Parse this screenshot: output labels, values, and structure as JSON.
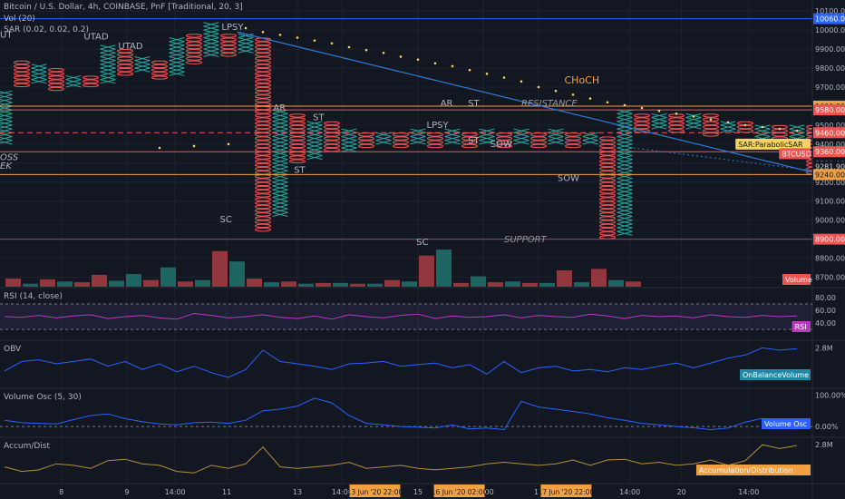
{
  "header": {
    "title": "Bitcoin / U.S. Dollar, 4h, COINBASE, PnF [Traditional, 20, 3]",
    "volume": "Vol (20)",
    "sar": "SAR (0.02, 0.02, 0.2)"
  },
  "chart_data": {
    "type": "point-and-figure",
    "price_axis": {
      "min": 8650,
      "max": 10120,
      "ticks": [
        8700,
        8800,
        8900,
        9000,
        9100,
        9200,
        9300,
        9400,
        9500,
        9600,
        9700,
        9800,
        9900,
        10000,
        10100
      ]
    },
    "columns": [
      {
        "t": "X",
        "lo": 9400,
        "hi": 9680
      },
      {
        "t": "O",
        "lo": 9700,
        "hi": 9840
      },
      {
        "t": "X",
        "lo": 9720,
        "hi": 9820
      },
      {
        "t": "O",
        "lo": 9680,
        "hi": 9800
      },
      {
        "t": "X",
        "lo": 9700,
        "hi": 9760
      },
      {
        "t": "O",
        "lo": 9700,
        "hi": 9760
      },
      {
        "t": "X",
        "lo": 9720,
        "hi": 9920
      },
      {
        "t": "O",
        "lo": 9760,
        "hi": 9900
      },
      {
        "t": "X",
        "lo": 9780,
        "hi": 9860
      },
      {
        "t": "O",
        "lo": 9740,
        "hi": 9840
      },
      {
        "t": "X",
        "lo": 9760,
        "hi": 9960
      },
      {
        "t": "O",
        "lo": 9820,
        "hi": 9980
      },
      {
        "t": "X",
        "lo": 9860,
        "hi": 10040
      },
      {
        "t": "O",
        "lo": 9860,
        "hi": 9980
      },
      {
        "t": "X",
        "lo": 9880,
        "hi": 9980
      },
      {
        "t": "O",
        "lo": 8940,
        "hi": 9960
      },
      {
        "t": "X",
        "lo": 9020,
        "hi": 9580
      },
      {
        "t": "O",
        "lo": 9300,
        "hi": 9560
      },
      {
        "t": "X",
        "lo": 9320,
        "hi": 9520
      },
      {
        "t": "O",
        "lo": 9360,
        "hi": 9520
      },
      {
        "t": "X",
        "lo": 9360,
        "hi": 9480
      },
      {
        "t": "O",
        "lo": 9380,
        "hi": 9460
      },
      {
        "t": "X",
        "lo": 9400,
        "hi": 9460
      },
      {
        "t": "O",
        "lo": 9380,
        "hi": 9460
      },
      {
        "t": "X",
        "lo": 9400,
        "hi": 9480
      },
      {
        "t": "O",
        "lo": 9380,
        "hi": 9460
      },
      {
        "t": "X",
        "lo": 9400,
        "hi": 9480
      },
      {
        "t": "O",
        "lo": 9380,
        "hi": 9460
      },
      {
        "t": "X",
        "lo": 9400,
        "hi": 9480
      },
      {
        "t": "O",
        "lo": 9380,
        "hi": 9460
      },
      {
        "t": "X",
        "lo": 9400,
        "hi": 9480
      },
      {
        "t": "O",
        "lo": 9380,
        "hi": 9460
      },
      {
        "t": "X",
        "lo": 9400,
        "hi": 9480
      },
      {
        "t": "O",
        "lo": 9380,
        "hi": 9460
      },
      {
        "t": "X",
        "lo": 9400,
        "hi": 9460
      },
      {
        "t": "O",
        "lo": 8900,
        "hi": 9440
      },
      {
        "t": "X",
        "lo": 8920,
        "hi": 9580
      },
      {
        "t": "O",
        "lo": 9460,
        "hi": 9560
      },
      {
        "t": "X",
        "lo": 9480,
        "hi": 9560
      },
      {
        "t": "O",
        "lo": 9460,
        "hi": 9560
      },
      {
        "t": "X",
        "lo": 9480,
        "hi": 9560
      },
      {
        "t": "O",
        "lo": 9440,
        "hi": 9560
      },
      {
        "t": "X",
        "lo": 9460,
        "hi": 9520
      },
      {
        "t": "O",
        "lo": 9460,
        "hi": 9520
      },
      {
        "t": "X",
        "lo": 9420,
        "hi": 9500
      },
      {
        "t": "O",
        "lo": 9420,
        "hi": 9500
      },
      {
        "t": "X",
        "lo": 9420,
        "hi": 9500
      },
      {
        "t": "O",
        "lo": 9240,
        "hi": 9500
      },
      {
        "t": "X",
        "lo": 9260,
        "hi": 9460
      },
      {
        "t": "O",
        "lo": 9240,
        "hi": 9440
      },
      {
        "t": "X",
        "lo": 9240,
        "hi": 9440
      },
      {
        "t": "O",
        "lo": 9340,
        "hi": 9400
      }
    ],
    "sar": [
      {
        "c": 9,
        "v": 9380
      },
      {
        "c": 11,
        "v": 9390
      },
      {
        "c": 13,
        "v": 9400
      },
      {
        "c": 14,
        "v": 10010
      },
      {
        "c": 15,
        "v": 9990
      },
      {
        "c": 16,
        "v": 9975
      },
      {
        "c": 17,
        "v": 9960
      },
      {
        "c": 18,
        "v": 9945
      },
      {
        "c": 19,
        "v": 9930
      },
      {
        "c": 20,
        "v": 9910
      },
      {
        "c": 21,
        "v": 9895
      },
      {
        "c": 22,
        "v": 9880
      },
      {
        "c": 23,
        "v": 9860
      },
      {
        "c": 24,
        "v": 9845
      },
      {
        "c": 25,
        "v": 9825
      },
      {
        "c": 26,
        "v": 9810
      },
      {
        "c": 27,
        "v": 9790
      },
      {
        "c": 28,
        "v": 9770
      },
      {
        "c": 29,
        "v": 9750
      },
      {
        "c": 30,
        "v": 9730
      },
      {
        "c": 31,
        "v": 9700
      },
      {
        "c": 32,
        "v": 9680
      },
      {
        "c": 33,
        "v": 9660
      },
      {
        "c": 34,
        "v": 9640
      },
      {
        "c": 35,
        "v": 9620
      },
      {
        "c": 36,
        "v": 9605
      },
      {
        "c": 37,
        "v": 9590
      },
      {
        "c": 38,
        "v": 9575
      },
      {
        "c": 39,
        "v": 9560
      },
      {
        "c": 40,
        "v": 9545
      },
      {
        "c": 41,
        "v": 9530
      },
      {
        "c": 42,
        "v": 9515
      },
      {
        "c": 43,
        "v": 9500
      },
      {
        "c": 44,
        "v": 9490
      },
      {
        "c": 45,
        "v": 9480
      },
      {
        "c": 46,
        "v": 9470
      },
      {
        "c": 47,
        "v": 9465
      }
    ],
    "volume": [
      {
        "c": 0,
        "v": 11,
        "d": "dn"
      },
      {
        "c": 1,
        "v": 4,
        "d": "up"
      },
      {
        "c": 2,
        "v": 10,
        "d": "dn"
      },
      {
        "c": 3,
        "v": 7,
        "d": "up"
      },
      {
        "c": 4,
        "v": 6,
        "d": "dn"
      },
      {
        "c": 5,
        "v": 16,
        "d": "dn"
      },
      {
        "c": 6,
        "v": 8,
        "d": "up"
      },
      {
        "c": 7,
        "v": 17,
        "d": "up"
      },
      {
        "c": 8,
        "v": 9,
        "d": "dn"
      },
      {
        "c": 9,
        "v": 26,
        "d": "up"
      },
      {
        "c": 10,
        "v": 7,
        "d": "dn"
      },
      {
        "c": 11,
        "v": 9,
        "d": "up"
      },
      {
        "c": 12,
        "v": 48,
        "d": "dn"
      },
      {
        "c": 13,
        "v": 34,
        "d": "up"
      },
      {
        "c": 14,
        "v": 11,
        "d": "dn"
      },
      {
        "c": 15,
        "v": 6,
        "d": "up"
      },
      {
        "c": 16,
        "v": 7,
        "d": "dn"
      },
      {
        "c": 17,
        "v": 4,
        "d": "up"
      },
      {
        "c": 18,
        "v": 5,
        "d": "dn"
      },
      {
        "c": 19,
        "v": 5,
        "d": "up"
      },
      {
        "c": 20,
        "v": 4,
        "d": "dn"
      },
      {
        "c": 21,
        "v": 4,
        "d": "up"
      },
      {
        "c": 22,
        "v": 9,
        "d": "dn"
      },
      {
        "c": 23,
        "v": 7,
        "d": "up"
      },
      {
        "c": 24,
        "v": 42,
        "d": "dn"
      },
      {
        "c": 25,
        "v": 50,
        "d": "up"
      },
      {
        "c": 26,
        "v": 5,
        "d": "dn"
      },
      {
        "c": 27,
        "v": 14,
        "d": "up"
      },
      {
        "c": 28,
        "v": 6,
        "d": "dn"
      },
      {
        "c": 29,
        "v": 7,
        "d": "up"
      },
      {
        "c": 30,
        "v": 5,
        "d": "dn"
      },
      {
        "c": 31,
        "v": 5,
        "d": "up"
      },
      {
        "c": 32,
        "v": 22,
        "d": "dn"
      },
      {
        "c": 33,
        "v": 6,
        "d": "up"
      },
      {
        "c": 34,
        "v": 24,
        "d": "dn"
      },
      {
        "c": 35,
        "v": 9,
        "d": "up"
      },
      {
        "c": 36,
        "v": 7,
        "d": "dn"
      }
    ],
    "levels": [
      {
        "v": 10060,
        "color": "#2962ff",
        "w": 1,
        "dash": false
      },
      {
        "v": 9600,
        "color": "#f0a040",
        "w": 1,
        "dash": false
      },
      {
        "v": 9580,
        "color": "#ef5350",
        "w": 1,
        "dash": false
      },
      {
        "v": 9460,
        "color": "#ef5350",
        "w": 1,
        "dash": true
      },
      {
        "v": 9360,
        "color": "#ef5350",
        "w": 1,
        "dash": false
      },
      {
        "v": 9240,
        "color": "#f0a040",
        "w": 1,
        "dash": false
      },
      {
        "v": 8900,
        "color": "#e91e63",
        "w": 1,
        "dash": false
      }
    ],
    "price_labels": [
      {
        "v": 10060,
        "text": "10060.00",
        "bg": "#2962ff",
        "fg": "#ffffff"
      },
      {
        "v": 9600,
        "text": "9600.00",
        "bg": "#f0a040",
        "fg": "#131722"
      },
      {
        "v": 9580,
        "text": "9580.00",
        "bg": "#ef5350",
        "fg": "#ffffff"
      },
      {
        "v": 9460,
        "text": "9460.00",
        "bg": "#ef5350",
        "fg": "#ffffff"
      },
      {
        "v": 9360,
        "text": "9360.00",
        "bg": "#ef5350",
        "fg": "#ffffff"
      },
      {
        "v": 9282,
        "text": "9281.90",
        "bg": "#131722",
        "fg": "#d1d4dc"
      },
      {
        "v": 9240,
        "text": "9240.00",
        "bg": "#f0a040",
        "fg": "#131722"
      },
      {
        "v": 8900,
        "text": "8900.00",
        "bg": "#ef5350",
        "fg": "#ffffff"
      }
    ],
    "legend_tags": [
      {
        "v": 9400,
        "text": "SAR:ParabolicSAR",
        "bg": "#f4d35e",
        "fg": "#131722"
      },
      {
        "v": 9350,
        "text": "BTCUSD",
        "bg": "#ef5350",
        "fg": "#ffffff"
      }
    ],
    "volume_tag": "Volume",
    "annotations": [
      {
        "c": 0,
        "v": 9960,
        "text": "UT",
        "color": "#b2b5be",
        "italic": false
      },
      {
        "c": 4.6,
        "v": 9950,
        "text": "UTAD",
        "color": "#b2b5be",
        "italic": false
      },
      {
        "c": 6.6,
        "v": 9900,
        "text": "UTAD",
        "color": "#b2b5be",
        "italic": false
      },
      {
        "c": 12.6,
        "v": 10000,
        "text": "LPSY",
        "color": "#b2b5be",
        "italic": false
      },
      {
        "c": 15.6,
        "v": 9575,
        "text": "AR",
        "color": "#b2b5be",
        "italic": false
      },
      {
        "c": 17.9,
        "v": 9525,
        "text": "ST",
        "color": "#b2b5be",
        "italic": false
      },
      {
        "c": 16.8,
        "v": 9250,
        "text": "ST",
        "color": "#b2b5be",
        "italic": false
      },
      {
        "c": 12.5,
        "v": 8990,
        "text": "SC",
        "color": "#b2b5be",
        "italic": false
      },
      {
        "c": 0,
        "v": 9315,
        "text": "OSS",
        "color": "#b2b5be",
        "italic": true
      },
      {
        "c": 0,
        "v": 9270,
        "text": "EK",
        "color": "#b2b5be",
        "italic": true
      },
      {
        "c": 25.3,
        "v": 9600,
        "text": "AR",
        "color": "#b2b5be",
        "italic": false
      },
      {
        "c": 26.9,
        "v": 9600,
        "text": "ST",
        "color": "#b2b5be",
        "italic": false
      },
      {
        "c": 24.5,
        "v": 9485,
        "text": "LPSY",
        "color": "#b2b5be",
        "italic": false
      },
      {
        "c": 26.9,
        "v": 9405,
        "text": "ST",
        "color": "#b2b5be",
        "italic": false
      },
      {
        "c": 28.2,
        "v": 9385,
        "text": "SOW",
        "color": "#b2b5be",
        "italic": false
      },
      {
        "c": 23.9,
        "v": 8870,
        "text": "SC",
        "color": "#b2b5be",
        "italic": false
      },
      {
        "c": 32.1,
        "v": 9205,
        "text": "SOW",
        "color": "#b2b5be",
        "italic": false
      },
      {
        "c": 30.0,
        "v": 9600,
        "text": "RESISTANCE",
        "color": "#9598a1",
        "italic": true
      },
      {
        "c": 29.0,
        "v": 8885,
        "text": "SUPPORT",
        "color": "#9598a1",
        "italic": true
      },
      {
        "c": 32.5,
        "v": 9720,
        "text": "CHoCH",
        "color": "#f0a040",
        "italic": false
      }
    ],
    "trendline": {
      "x1": 13.5,
      "v1": 9990,
      "x2": 47,
      "v2": 9250
    },
    "trend_ext": {
      "x1": 36.5,
      "v1": 9380,
      "x2": 47,
      "v2": 9260
    },
    "rsi": {
      "label": "RSI (14, close)",
      "tag": "RSI",
      "ticks": [
        "80.00",
        "60.00",
        "40.00"
      ],
      "values": [
        50,
        49,
        52,
        48,
        51,
        53,
        47,
        50,
        52,
        48,
        46,
        55,
        52,
        48,
        50,
        53,
        49,
        47,
        51,
        46,
        53,
        50,
        48,
        52,
        54,
        47,
        51,
        49,
        50,
        53,
        48,
        52,
        50,
        49,
        54,
        51,
        47,
        52,
        50,
        51,
        48,
        53,
        50,
        49,
        52,
        50,
        51
      ]
    },
    "obv": {
      "label": "OBV",
      "tag": "OnBalanceVolume",
      "ticks": [
        "2.8M"
      ],
      "values": [
        46,
        58,
        60,
        55,
        58,
        61,
        52,
        58,
        48,
        55,
        45,
        52,
        44,
        38,
        48,
        72,
        58,
        55,
        52,
        48,
        55,
        56,
        58,
        52,
        54,
        56,
        50,
        54,
        42,
        58,
        44,
        50,
        52,
        46,
        48,
        45,
        50,
        48,
        52,
        56,
        50,
        56,
        62,
        66,
        75,
        72,
        74
      ]
    },
    "vosc": {
      "label": "Volume Osc (5, 30)",
      "tag": "Volume Osc",
      "ticks": [
        "100.00%",
        "0.00%"
      ],
      "values": [
        20,
        12,
        10,
        8,
        22,
        35,
        40,
        25,
        15,
        8,
        5,
        12,
        14,
        10,
        20,
        50,
        55,
        65,
        90,
        75,
        35,
        10,
        5,
        0,
        -2,
        -5,
        5,
        -8,
        -5,
        -10,
        80,
        62,
        55,
        48,
        40,
        28,
        20,
        10,
        5,
        0,
        -4,
        -10,
        -5,
        14,
        26,
        10,
        -8
      ]
    },
    "accum": {
      "label": "Accum/Dist",
      "tag": "Accumulation/Distribution",
      "ticks": [
        "2.8M"
      ],
      "values": [
        46,
        40,
        42,
        50,
        48,
        44,
        54,
        56,
        50,
        48,
        40,
        38,
        48,
        44,
        50,
        72,
        46,
        44,
        46,
        48,
        52,
        44,
        46,
        48,
        44,
        42,
        44,
        46,
        50,
        52,
        50,
        48,
        50,
        55,
        48,
        55,
        56,
        50,
        52,
        48,
        50,
        55,
        48,
        54,
        75,
        70,
        74
      ]
    },
    "time_axis": {
      "labels": [
        {
          "c": 3.3,
          "text": "8"
        },
        {
          "c": 7.1,
          "text": "9"
        },
        {
          "c": 9.9,
          "text": "14:00"
        },
        {
          "c": 12.9,
          "text": "11"
        },
        {
          "c": 17.0,
          "text": "13"
        },
        {
          "c": 19.6,
          "text": "14:00"
        },
        {
          "c": 24.0,
          "text": "15"
        },
        {
          "c": 27.8,
          "text": "14:00"
        },
        {
          "c": 31.0,
          "text": "17"
        },
        {
          "c": 36.3,
          "text": "14:00"
        },
        {
          "c": 39.3,
          "text": "20"
        },
        {
          "c": 43.2,
          "text": "14:00"
        }
      ],
      "highlights": [
        {
          "c": 21.5,
          "text": "13 Jun '20   22:00"
        },
        {
          "c": 26.4,
          "text": "16 Jun '20   02:00"
        },
        {
          "c": 32.6,
          "text": "17 Jun '20   22:00"
        }
      ]
    }
  }
}
